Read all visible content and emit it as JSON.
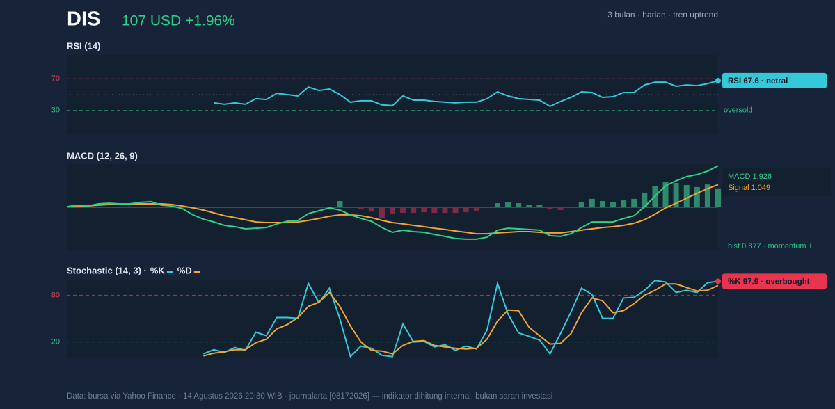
{
  "header": {
    "ticker": "DIS",
    "quote": "107 USD +1.96%",
    "subtitle": "3 bulan · harian · tren uptrend"
  },
  "chart_data": [
    {
      "type": "line",
      "title": "RSI (14)",
      "ylim": [
        0,
        100
      ],
      "yticks": [
        30,
        70
      ],
      "tick_colors": [
        "#2fbf8a",
        "#d9455f"
      ],
      "midline": 50,
      "right_label": "oversold",
      "callout": "RSI 67.6 · netral",
      "callout_color": "#35c8d8",
      "color": "#35c8d8",
      "values": [
        null,
        null,
        null,
        null,
        null,
        null,
        null,
        null,
        null,
        null,
        null,
        null,
        null,
        null,
        39.6,
        37.8,
        39.6,
        37.8,
        44.8,
        43.9,
        51.7,
        50.0,
        48.3,
        59.6,
        55.2,
        57.0,
        50.0,
        40.4,
        42.2,
        42.2,
        37.0,
        36.1,
        48.3,
        43.0,
        43.0,
        41.3,
        40.4,
        39.6,
        40.4,
        40.4,
        44.8,
        53.5,
        48.3,
        44.8,
        43.9,
        43.0,
        35.2,
        41.3,
        46.5,
        53.5,
        52.6,
        46.5,
        47.4,
        52.6,
        52.6,
        62.2,
        65.7,
        65.7,
        60.4,
        62.2,
        61.3,
        63.9,
        67.6
      ]
    },
    {
      "type": "combo",
      "title": "MACD (12, 26, 9)",
      "ylim": [
        -2,
        2
      ],
      "series": [
        {
          "kind": "bar",
          "label": "hist 0.877 · momentum +",
          "color": "#2e8a6c",
          "neg_color": "#7d2a48",
          "values": [
            0,
            0,
            0,
            0,
            0,
            0,
            0,
            0,
            0,
            0,
            0,
            0,
            0,
            0,
            0,
            0,
            0,
            0,
            0,
            0,
            0,
            0,
            0,
            0,
            0,
            0,
            0.29,
            0,
            -0.1,
            -0.2,
            -0.52,
            -0.29,
            -0.26,
            -0.26,
            -0.23,
            -0.26,
            -0.26,
            -0.26,
            -0.23,
            -0.16,
            0,
            0.19,
            0.23,
            0.19,
            0.13,
            0.1,
            -0.1,
            -0.13,
            0,
            0.23,
            0.39,
            0.29,
            0.23,
            0.32,
            0.39,
            0.68,
            1.0,
            1.16,
            1.13,
            1.03,
            0.94,
            1.06,
            0.877
          ]
        },
        {
          "kind": "line",
          "label": "Signal 1.049",
          "color": "#f0a535",
          "values": [
            0.03,
            0.03,
            0.06,
            0.1,
            0.13,
            0.13,
            0.16,
            0.16,
            0.16,
            0.16,
            0.13,
            0.06,
            -0.03,
            -0.13,
            -0.26,
            -0.39,
            -0.48,
            -0.58,
            -0.68,
            -0.71,
            -0.71,
            -0.71,
            -0.68,
            -0.61,
            -0.52,
            -0.42,
            -0.35,
            -0.35,
            -0.39,
            -0.48,
            -0.61,
            -0.71,
            -0.77,
            -0.84,
            -0.9,
            -0.97,
            -1.03,
            -1.1,
            -1.16,
            -1.23,
            -1.23,
            -1.19,
            -1.16,
            -1.13,
            -1.13,
            -1.16,
            -1.19,
            -1.19,
            -1.13,
            -1.06,
            -1.0,
            -0.94,
            -0.9,
            -0.84,
            -0.74,
            -0.58,
            -0.32,
            -0.03,
            0.19,
            0.42,
            0.65,
            0.87,
            1.049
          ]
        },
        {
          "kind": "line",
          "label": "MACD 1.926",
          "color": "#2fcf8a",
          "values": [
            0.03,
            0.1,
            0.06,
            0.16,
            0.19,
            0.16,
            0.16,
            0.23,
            0.26,
            0.1,
            0.06,
            -0.06,
            -0.35,
            -0.55,
            -0.68,
            -0.84,
            -0.9,
            -1.0,
            -0.97,
            -0.94,
            -0.77,
            -0.65,
            -0.61,
            -0.29,
            -0.16,
            -0.03,
            -0.13,
            -0.35,
            -0.52,
            -0.65,
            -0.94,
            -1.16,
            -1.06,
            -1.13,
            -1.16,
            -1.26,
            -1.35,
            -1.45,
            -1.48,
            -1.48,
            -1.39,
            -1.06,
            -0.97,
            -1.0,
            -1.03,
            -1.06,
            -1.32,
            -1.35,
            -1.23,
            -0.94,
            -0.68,
            -0.68,
            -0.68,
            -0.52,
            -0.39,
            0.03,
            0.52,
            1.0,
            1.23,
            1.42,
            1.52,
            1.68,
            1.926
          ]
        }
      ]
    },
    {
      "type": "line",
      "title": "Stochastic (14, 3) ·",
      "ylim": [
        0,
        100
      ],
      "yticks": [
        20,
        80
      ],
      "tick_colors": [
        "#2fbf8a",
        "#d9455f"
      ],
      "callout": "%K 97.9 · overbought",
      "callout_color": "#e8344f",
      "series": [
        {
          "name": "%K",
          "color": "#35c8d8",
          "values": [
            null,
            null,
            null,
            null,
            null,
            null,
            null,
            null,
            null,
            null,
            null,
            null,
            null,
            4.7,
            10.1,
            6.5,
            12.8,
            9.2,
            32.5,
            28.0,
            51.3,
            51.3,
            50.4,
            95.2,
            70.2,
            89.0,
            49.5,
            1.2,
            14.6,
            11.9,
            2.9,
            1.2,
            43.2,
            19.9,
            20.8,
            13.7,
            16.4,
            9.2,
            14.6,
            11.0,
            35.1,
            95.2,
            55.8,
            31.6,
            27.1,
            22.6,
            4.7,
            30.7,
            58.5,
            89.0,
            81.0,
            50.4,
            50.4,
            76.4,
            77.3,
            86.3,
            98.8,
            97.0,
            83.6,
            86.3,
            83.6,
            96.1,
            97.9
          ]
        },
        {
          "name": "%D",
          "color": "#f0a535",
          "values": [
            null,
            null,
            null,
            null,
            null,
            null,
            null,
            null,
            null,
            null,
            null,
            null,
            null,
            2.1,
            5.6,
            7.4,
            10.1,
            10.1,
            19.0,
            23.5,
            36.9,
            42.3,
            51.3,
            65.6,
            70.9,
            83.6,
            65.6,
            40.5,
            19.9,
            9.2,
            8.3,
            4.7,
            15.5,
            20.8,
            21.8,
            15.5,
            13.7,
            11.9,
            11.0,
            11.9,
            23.5,
            46.8,
            61.1,
            60.2,
            38.8,
            28.0,
            17.3,
            18.2,
            30.7,
            57.6,
            76.4,
            72.8,
            57.6,
            60.2,
            69.2,
            79.9,
            86.3,
            94.4,
            94.4,
            89.9,
            85.4,
            86.3,
            92.5
          ]
        }
      ]
    }
  ],
  "footer": "Data: bursa via Yahoo Finance · 14 Agustus 2026 20:30 WIB · journalarta [08172026] — indikator dihitung internal, bukan saran investasi"
}
